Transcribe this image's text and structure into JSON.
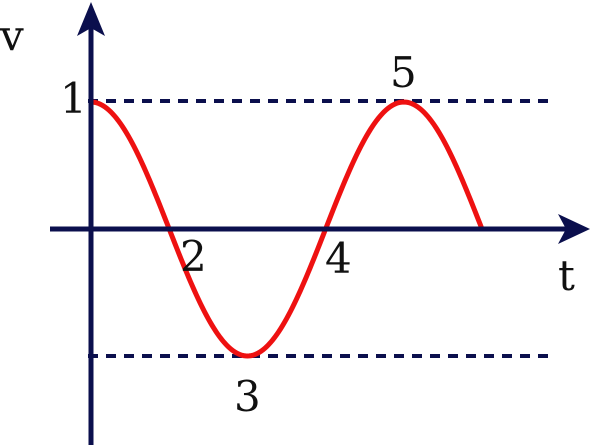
{
  "axes": {
    "y_label": "v",
    "x_label": "t"
  },
  "points": [
    {
      "id": "1",
      "label": "1"
    },
    {
      "id": "2",
      "label": "2"
    },
    {
      "id": "3",
      "label": "3"
    },
    {
      "id": "4",
      "label": "4"
    },
    {
      "id": "5",
      "label": "5"
    }
  ],
  "colors": {
    "axis": "#0b0f4d",
    "curve": "#ee1111",
    "guide": "#0b0f4d",
    "text": "#111111"
  }
}
